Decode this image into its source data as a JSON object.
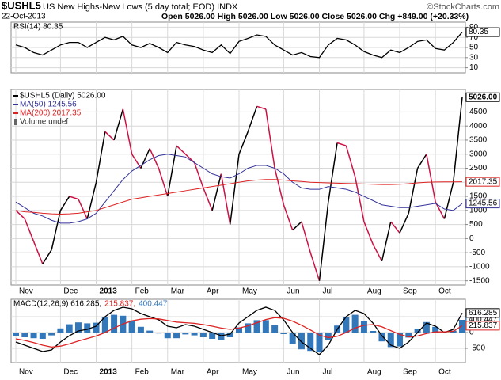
{
  "header": {
    "symbol": "$USHL5",
    "name": "US New Highs-New Lows (5 day total; EOD) INDX",
    "brand": "©StockCharts.com",
    "date": "22-Oct-2013",
    "ohlc": "Open 5026.00 High 5026.00 Low 5026.00 Close 5026.00 Chg +849.00 (+20.33%)"
  },
  "chart_data": [
    {
      "type": "line",
      "label": "RSI(14) 80.35",
      "ylim": [
        0,
        100
      ],
      "yticks": [
        10,
        30,
        50,
        70,
        90
      ],
      "grid": true,
      "series": [
        {
          "name": "RSI(14)",
          "color": "#000000",
          "end_label": "80.35",
          "values": [
            55,
            50,
            40,
            35,
            45,
            55,
            60,
            60,
            50,
            60,
            70,
            65,
            72,
            55,
            50,
            58,
            50,
            40,
            60,
            55,
            52,
            45,
            40,
            55,
            38,
            62,
            68,
            75,
            72,
            55,
            45,
            35,
            40,
            32,
            30,
            55,
            68,
            65,
            55,
            42,
            35,
            30,
            45,
            40,
            50,
            62,
            65,
            48,
            45,
            60,
            80.35
          ]
        }
      ]
    },
    {
      "type": "line",
      "ylim": [
        -1650,
        5300
      ],
      "yticks": [
        -1500,
        -1000,
        -500,
        0,
        500,
        1000,
        1500,
        2000,
        2500,
        3000,
        3500,
        4000,
        4500
      ],
      "grid": true,
      "categories": [
        "Nov",
        null,
        null,
        null,
        null,
        "Dec",
        null,
        null,
        null,
        "2013",
        null,
        null,
        null,
        "Feb",
        null,
        null,
        null,
        "Mar",
        null,
        null,
        null,
        "Apr",
        null,
        null,
        null,
        "May",
        null,
        null,
        null,
        null,
        "Jun",
        null,
        null,
        null,
        "Jul",
        null,
        null,
        null,
        null,
        "Aug",
        null,
        null,
        null,
        "Sep",
        null,
        null,
        null,
        "Oct",
        null,
        null,
        null
      ],
      "volume_label": "Volume undef",
      "series": [
        {
          "name": "$USHL5 (Daily) 5026.00",
          "color": "#000000",
          "down_color": "#cc1144",
          "end_label": "5026.00",
          "values": [
            1000,
            700,
            -100,
            -900,
            -400,
            1000,
            1500,
            1400,
            700,
            2000,
            3800,
            3500,
            4600,
            3000,
            2500,
            3200,
            2500,
            1500,
            3300,
            3000,
            2700,
            1800,
            1000,
            2300,
            500,
            3000,
            3800,
            4700,
            4600,
            2500,
            1200,
            300,
            600,
            -500,
            -1500,
            1300,
            3400,
            3300,
            2200,
            600,
            -200,
            -800,
            600,
            200,
            900,
            2500,
            3000,
            1300,
            700,
            2000,
            5026
          ]
        },
        {
          "name": "MA(50) 1245.56",
          "color": "#333399",
          "end_label": "1245.56",
          "values": [
            1300,
            1100,
            900,
            800,
            650,
            550,
            550,
            600,
            700,
            900,
            1300,
            1700,
            2100,
            2400,
            2600,
            2800,
            2950,
            3000,
            2950,
            2900,
            2700,
            2500,
            2300,
            2200,
            2150,
            2300,
            2500,
            2600,
            2600,
            2500,
            2300,
            2000,
            1800,
            1750,
            1750,
            1850,
            1800,
            1750,
            1650,
            1500,
            1350,
            1200,
            1150,
            1100,
            1100,
            1150,
            1200,
            1250,
            1050,
            1000,
            1245.56
          ]
        },
        {
          "name": "MA(200) 2017.35",
          "color": "#dd2222",
          "end_label": "2017.35",
          "values": [
            1000,
            950,
            930,
            900,
            880,
            870,
            880,
            900,
            950,
            1000,
            1100,
            1200,
            1300,
            1400,
            1450,
            1500,
            1550,
            1600,
            1650,
            1700,
            1750,
            1800,
            1850,
            1900,
            1950,
            2000,
            2050,
            2080,
            2100,
            2100,
            2080,
            2050,
            2030,
            2000,
            1990,
            1980,
            1970,
            1960,
            1950,
            1940,
            1930,
            1920,
            1920,
            1930,
            1950,
            1980,
            2000,
            2010,
            2015,
            2016,
            2017.35
          ]
        }
      ]
    },
    {
      "type": "line",
      "ylim": [
        -950,
        1050
      ],
      "yticks": [
        -500,
        0,
        500
      ],
      "grid": true,
      "categories": [
        "Nov",
        null,
        null,
        null,
        null,
        "Dec",
        null,
        null,
        null,
        "2013",
        null,
        null,
        null,
        "Feb",
        null,
        null,
        null,
        "Mar",
        null,
        null,
        null,
        "Apr",
        null,
        null,
        null,
        "May",
        null,
        null,
        null,
        null,
        "Jun",
        null,
        null,
        null,
        "Jul",
        null,
        null,
        null,
        null,
        "Aug",
        null,
        null,
        null,
        "Sep",
        null,
        null,
        null,
        "Oct",
        null,
        null,
        null
      ],
      "series": [
        {
          "name": "400.447",
          "type": "bar",
          "color": "#3377bb",
          "end_label": "400.447",
          "values": [
            -100,
            -150,
            -180,
            -200,
            -90,
            130,
            260,
            320,
            290,
            310,
            500,
            560,
            530,
            380,
            180,
            60,
            -30,
            -180,
            -180,
            -60,
            -90,
            -150,
            -200,
            -240,
            -150,
            160,
            290,
            390,
            390,
            230,
            -50,
            -360,
            -530,
            -580,
            -620,
            -240,
            220,
            500,
            560,
            370,
            50,
            -280,
            -460,
            -440,
            -160,
            110,
            330,
            180,
            -20,
            60,
            400.447
          ]
        },
        {
          "name": "MACD(12,26,9) 616.285,",
          "color": "#000000",
          "end_label": "616.285",
          "values": [
            -300,
            -400,
            -500,
            -600,
            -550,
            -300,
            -100,
            50,
            100,
            200,
            500,
            700,
            800,
            750,
            600,
            500,
            400,
            200,
            150,
            250,
            200,
            100,
            0,
            -100,
            -50,
            300,
            500,
            700,
            800,
            700,
            400,
            0,
            -300,
            -500,
            -700,
            -400,
            100,
            500,
            700,
            600,
            300,
            -100,
            -400,
            -500,
            -300,
            0,
            300,
            200,
            0,
            100,
            616.285
          ]
        },
        {
          "name": "215.837,",
          "color": "#dd2222",
          "end_label": "215.837",
          "values": [
            -200,
            -250,
            -320,
            -400,
            -460,
            -430,
            -360,
            -270,
            -190,
            -110,
            0,
            140,
            270,
            370,
            420,
            440,
            430,
            380,
            330,
            310,
            290,
            250,
            200,
            140,
            100,
            140,
            210,
            310,
            410,
            470,
            450,
            360,
            230,
            80,
            -80,
            -160,
            -120,
            0,
            140,
            230,
            250,
            180,
            60,
            -60,
            -140,
            -110,
            -30,
            20,
            20,
            40,
            215.837
          ]
        }
      ]
    }
  ]
}
